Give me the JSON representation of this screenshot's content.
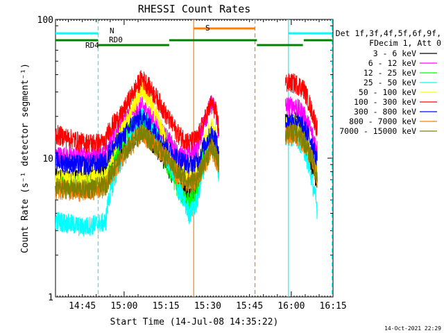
{
  "chart_data": {
    "type": "line",
    "title": "RHESSI Count Rates",
    "xlabel": "Start Time (14-Jul-08 14:35:22)",
    "ylabel": "Count Rate (s⁻¹ detector segment⁻¹)",
    "ylim": [
      1,
      100
    ],
    "yscale": "log",
    "ytick_labels": [
      "1",
      "10",
      "100"
    ],
    "xlim_min": [
      0,
      99.6
    ],
    "xticks": [
      {
        "min": 9.63,
        "label": "14:45"
      },
      {
        "min": 24.63,
        "label": "15:00"
      },
      {
        "min": 39.63,
        "label": "15:15"
      },
      {
        "min": 54.63,
        "label": "15:30"
      },
      {
        "min": 69.63,
        "label": "15:45"
      },
      {
        "min": 84.63,
        "label": "16:00"
      },
      {
        "min": 99.63,
        "label": "16:15"
      }
    ],
    "legend_header": [
      "Det 1f,3f,4f,5f,6f,9f,",
      "FDecim 1, Att 0"
    ],
    "legend_position": "right",
    "footer": "14-Oct-2021 22:29",
    "gap_min": [
      58.7,
      82.5
    ],
    "series": [
      {
        "name": "3 - 6 keV",
        "color": "#000000",
        "values": [
          [
            0,
            7.2
          ],
          [
            10,
            7.4
          ],
          [
            18,
            7.8
          ],
          [
            19,
            9.5
          ],
          [
            24,
            11
          ],
          [
            28,
            14
          ],
          [
            31,
            16
          ],
          [
            35,
            13
          ],
          [
            40,
            9
          ],
          [
            44,
            6.5
          ],
          [
            48,
            5.2
          ],
          [
            51,
            6.5
          ],
          [
            54,
            12
          ],
          [
            56,
            16
          ],
          [
            57.5,
            13
          ],
          [
            58.7,
            9
          ],
          [
            82.5,
            18
          ],
          [
            86,
            19
          ],
          [
            89,
            15
          ],
          [
            92,
            9
          ],
          [
            94,
            6.5
          ]
        ]
      },
      {
        "name": "6 - 12 keV",
        "color": "#ff00ff",
        "values": [
          [
            0,
            10.5
          ],
          [
            10,
            10.3
          ],
          [
            18,
            10.8
          ],
          [
            19,
            13
          ],
          [
            24,
            18
          ],
          [
            28,
            22
          ],
          [
            31,
            24
          ],
          [
            35,
            19
          ],
          [
            40,
            14
          ],
          [
            44,
            10.5
          ],
          [
            48,
            10.8
          ],
          [
            51,
            12
          ],
          [
            54,
            20
          ],
          [
            56,
            25
          ],
          [
            57.5,
            22
          ],
          [
            58.7,
            13
          ],
          [
            82.5,
            24
          ],
          [
            86,
            24
          ],
          [
            89,
            21
          ],
          [
            92,
            15
          ],
          [
            94,
            11.5
          ]
        ]
      },
      {
        "name": "12 - 25 keV",
        "color": "#00ff00",
        "values": [
          [
            0,
            6.4
          ],
          [
            10,
            6.4
          ],
          [
            18,
            6.9
          ],
          [
            19,
            8
          ],
          [
            24,
            13
          ],
          [
            28,
            17
          ],
          [
            31,
            18
          ],
          [
            35,
            14
          ],
          [
            40,
            9
          ],
          [
            44,
            6
          ],
          [
            48,
            4.8
          ],
          [
            51,
            6
          ],
          [
            54,
            12
          ],
          [
            56,
            15
          ],
          [
            57.5,
            13
          ],
          [
            58.7,
            8
          ],
          [
            82.5,
            16
          ],
          [
            86,
            17
          ],
          [
            89,
            14
          ],
          [
            92,
            10
          ],
          [
            94,
            7.5
          ]
        ]
      },
      {
        "name": "25 - 50 keV",
        "color": "#00ffff",
        "values": [
          [
            0,
            3.6
          ],
          [
            10,
            3.2
          ],
          [
            18,
            3.5
          ],
          [
            19,
            5
          ],
          [
            24,
            10
          ],
          [
            28,
            16
          ],
          [
            31,
            20
          ],
          [
            35,
            16
          ],
          [
            40,
            10
          ],
          [
            44,
            6
          ],
          [
            48,
            4
          ],
          [
            51,
            5
          ],
          [
            54,
            10
          ],
          [
            56,
            14
          ],
          [
            57.5,
            12
          ],
          [
            58.7,
            7
          ],
          [
            82.5,
            14
          ],
          [
            86,
            15
          ],
          [
            89,
            12
          ],
          [
            92,
            7
          ],
          [
            94,
            4.2
          ]
        ]
      },
      {
        "name": "50 - 100 keV",
        "color": "#ffff00",
        "values": [
          [
            0,
            7.1
          ],
          [
            10,
            7.0
          ],
          [
            18,
            7.5
          ],
          [
            19,
            9
          ],
          [
            24,
            16
          ],
          [
            28,
            24
          ],
          [
            31,
            32
          ],
          [
            35,
            23
          ],
          [
            40,
            12
          ],
          [
            44,
            8
          ],
          [
            48,
            7.5
          ],
          [
            51,
            8
          ],
          [
            54,
            14
          ],
          [
            56,
            17
          ],
          [
            57.5,
            15
          ],
          [
            58.7,
            9
          ],
          [
            82.5,
            17
          ],
          [
            86,
            18
          ],
          [
            89,
            15
          ],
          [
            92,
            10
          ],
          [
            94,
            7
          ]
        ]
      },
      {
        "name": "100 - 300 keV",
        "color": "#ff0000",
        "values": [
          [
            0,
            15
          ],
          [
            10,
            13
          ],
          [
            18,
            13
          ],
          [
            19,
            16
          ],
          [
            24,
            21
          ],
          [
            28,
            30
          ],
          [
            31,
            38
          ],
          [
            35,
            30
          ],
          [
            40,
            20
          ],
          [
            44,
            15
          ],
          [
            48,
            13
          ],
          [
            51,
            14
          ],
          [
            54,
            20
          ],
          [
            56,
            25
          ],
          [
            57.5,
            22
          ],
          [
            58.7,
            16
          ],
          [
            82.5,
            35
          ],
          [
            86,
            35
          ],
          [
            89,
            32
          ],
          [
            92,
            22
          ],
          [
            94,
            16
          ]
        ]
      },
      {
        "name": "300 - 800 keV",
        "color": "#0000ff",
        "values": [
          [
            0,
            9.6
          ],
          [
            10,
            9.0
          ],
          [
            18,
            9.4
          ],
          [
            19,
            11
          ],
          [
            24,
            14
          ],
          [
            28,
            18
          ],
          [
            31,
            20
          ],
          [
            35,
            16
          ],
          [
            40,
            12
          ],
          [
            44,
            10
          ],
          [
            48,
            9
          ],
          [
            51,
            9.5
          ],
          [
            54,
            13
          ],
          [
            56,
            15
          ],
          [
            57.5,
            14
          ],
          [
            58.7,
            10
          ],
          [
            82.5,
            18
          ],
          [
            86,
            19
          ],
          [
            89,
            17
          ],
          [
            92,
            13
          ],
          [
            94,
            9.5
          ]
        ]
      },
      {
        "name": "800 - 7000 keV",
        "color": "#ff8000",
        "values": [
          [
            0,
            6.0
          ],
          [
            10,
            5.8
          ],
          [
            18,
            6.2
          ],
          [
            19,
            7
          ],
          [
            24,
            10
          ],
          [
            28,
            13
          ],
          [
            31,
            15
          ],
          [
            35,
            13
          ],
          [
            40,
            10
          ],
          [
            44,
            7.5
          ],
          [
            48,
            6.5
          ],
          [
            51,
            7
          ],
          [
            54,
            9.5
          ],
          [
            56,
            12
          ],
          [
            57.5,
            10
          ],
          [
            58.7,
            9
          ],
          [
            82.5,
            15
          ],
          [
            86,
            15
          ],
          [
            89,
            13
          ],
          [
            92,
            10
          ],
          [
            94,
            7
          ]
        ]
      },
      {
        "name": "7000 - 15000 keV",
        "color": "#808000",
        "values": [
          [
            0,
            6.2
          ],
          [
            10,
            6.0
          ],
          [
            18,
            6.4
          ],
          [
            19,
            7.2
          ],
          [
            24,
            10.5
          ],
          [
            28,
            13.5
          ],
          [
            31,
            15.5
          ],
          [
            35,
            13
          ],
          [
            40,
            10
          ],
          [
            44,
            7.8
          ],
          [
            48,
            6.8
          ],
          [
            51,
            7.2
          ],
          [
            54,
            10
          ],
          [
            56,
            12
          ],
          [
            57.5,
            10.5
          ],
          [
            58.7,
            9.2
          ],
          [
            82.5,
            15.5
          ],
          [
            86,
            15.5
          ],
          [
            89,
            13.5
          ],
          [
            92,
            10
          ],
          [
            94,
            7
          ]
        ]
      }
    ],
    "state_bars": [
      {
        "label": "N",
        "color": "#00ffff",
        "segments": [
          [
            0,
            15.3
          ],
          [
            83.6,
            99.3
          ]
        ]
      },
      {
        "label": "RD0",
        "color": "#008000",
        "segments": [
          [
            0,
            15.3
          ],
          [
            15.3,
            40.8
          ],
          [
            40.8,
            72.3
          ],
          [
            72.3,
            88.8
          ],
          [
            89.1,
            99.3
          ]
        ]
      },
      {
        "label": "RD4",
        "color": "#008000",
        "segments": []
      },
      {
        "label": "S",
        "color": "#ff8000",
        "segments": [
          [
            49.6,
            71.6
          ]
        ]
      }
    ],
    "vertical_markers": [
      {
        "min": 15.3,
        "color": "#00ffff",
        "style": "dashed"
      },
      {
        "min": 49.6,
        "color": "#ff8000",
        "style": "solid"
      },
      {
        "min": 71.6,
        "color": "#ff8000",
        "style": "dashed"
      },
      {
        "min": 83.6,
        "color": "#00ffff",
        "style": "solid"
      },
      {
        "min": 99.3,
        "color": "#00ffff",
        "style": "dashed"
      }
    ]
  }
}
